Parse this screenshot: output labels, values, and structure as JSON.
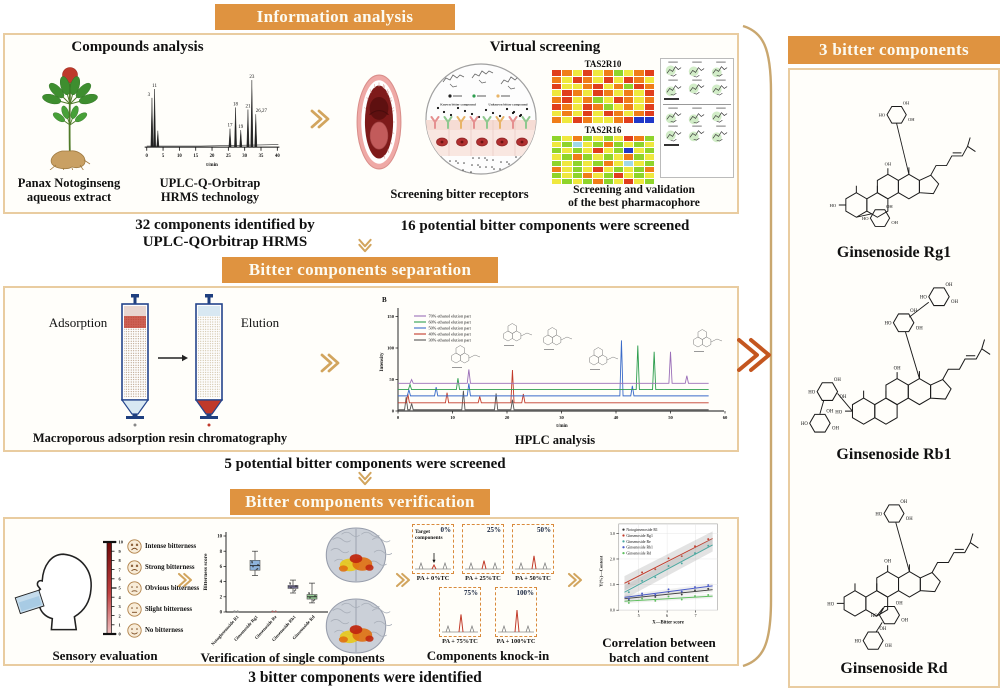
{
  "palette": {
    "header_bg": "#DF9340",
    "header_text": "#FCFBF2",
    "panel_border": "#E9CCA0",
    "panel_bg": "#FFFEFA",
    "chevron_tan": "#D2A55E",
    "chevron_red": "#C4561F",
    "bracket": "#C9A76F",
    "text": "#111111"
  },
  "headers": {
    "information_analysis": "Information analysis",
    "bitter_separation": "Bitter components separation",
    "bitter_verification": "Bitter components verification",
    "three_components": "3 bitter components"
  },
  "top": {
    "compounds_title": "Compounds analysis",
    "virtual_title": "Virtual screening",
    "plant_caption": [
      "Panax Notoginseng",
      "aqueous extract"
    ],
    "uplc_caption": [
      "UPLC-Q-Orbitrap",
      "HRMS technology"
    ],
    "receptor_caption": "Screening bitter receptors",
    "receptor_circle": {
      "known_label": "Known bitter compound",
      "unknown_label": "Unknown bitter compound"
    },
    "pharma_caption": [
      "Screening and validation",
      "of the best pharmacophore"
    ],
    "result_left": [
      "32 components identified by",
      "UPLC-QOrbitrap HRMS"
    ],
    "result_right": "16 potential bitter components were screened"
  },
  "middle": {
    "adsorption_label": "Adsorption",
    "elution_label": "Elution",
    "resin_caption": "Macroporous adsorption resin chromatography",
    "hplc_caption": "HPLC analysis",
    "result": "5 potential bitter components were screened"
  },
  "bottom": {
    "scale_ticks": [
      "10",
      "9",
      "8",
      "7",
      "6",
      "5",
      "4",
      "3",
      "2",
      "1",
      "0"
    ],
    "scale_labels": [
      "Intense bitterness",
      "Strong bitterness",
      "Obvious bitterness",
      "Slight bitterness",
      "No bitterness"
    ],
    "sensory_caption": "Sensory evaluation",
    "verification_caption": "Verification of single components",
    "knockin_caption": "Components knock-in",
    "target_label": [
      "Target",
      "components"
    ],
    "correlation_caption": [
      "Correlation between",
      "batch and content"
    ],
    "result": "3 bitter components were identified"
  },
  "right": {
    "compound_names": [
      "Ginsenoside Rg1",
      "Ginsenoside Rb1",
      "Ginsenoside Rd"
    ],
    "oh_label": "OH",
    "ho_label": "HO"
  },
  "chart_data": [
    {
      "id": "uplc_chromatogram",
      "type": "line",
      "xlabel": "t/min",
      "xticks": [
        0,
        5,
        10,
        15,
        20,
        25,
        30,
        35,
        40
      ],
      "xlim": [
        0,
        40
      ],
      "peaks": [
        {
          "t": 1.6,
          "h": 72,
          "label": "3",
          "dx": -5
        },
        {
          "t": 2.4,
          "h": 85,
          "label": "11",
          "dx": 0
        },
        {
          "t": 3.4,
          "h": 24,
          "label": "",
          "dx": 0
        },
        {
          "t": 25.5,
          "h": 27,
          "label": "17",
          "dx": 0
        },
        {
          "t": 27.2,
          "h": 58,
          "label": "18",
          "dx": 0
        },
        {
          "t": 28.8,
          "h": 25,
          "label": "19",
          "dx": 0
        },
        {
          "t": 31.0,
          "h": 55,
          "label": "21",
          "dx": 0
        },
        {
          "t": 32.2,
          "h": 98,
          "label": "23",
          "dx": 0
        },
        {
          "t": 33.4,
          "h": 48,
          "label": "26,27",
          "dx": 9
        }
      ]
    },
    {
      "id": "tas2r_heatmaps",
      "type": "heatmap",
      "palette": {
        "r": "#E03E1C",
        "o": "#F07D18",
        "y": "#EFE83E",
        "g": "#8FD42A",
        "G": "#3FAE3F",
        "b": "#2038C8",
        "c": "#9FD8E8"
      },
      "maps": [
        {
          "title": "TAS2R10",
          "rows": [
            "royryogyor",
            "oyroyryroy",
            "ryyoryogro",
            "yroyroyoyr",
            "oryogyroyo",
            "royrogyoyr",
            "yoyryroyor",
            "oyroyyorbb"
          ]
        },
        {
          "title": "TAS2R16",
          "rows": [
            "gyogygyrog",
            "ygcygogygy",
            "gygyrygbyg",
            "ygogygyogy",
            "gygygoycyg",
            "oygyrygygo",
            "gygoygrygy",
            "ygygogyryg"
          ]
        }
      ]
    },
    {
      "id": "hplc",
      "type": "line",
      "panel_label": "B",
      "ylabel": "Intensity",
      "xlabel": "t/min",
      "yticks": [
        0,
        50,
        100,
        150
      ],
      "xticks": [
        0,
        10,
        20,
        30,
        40,
        50,
        60
      ],
      "legend": [
        "70% ethanol elution part",
        "60% ethanol elution part",
        "50% ethanol elution part",
        "40% ethanol elution part",
        "30% ethanol elution part"
      ],
      "series": [
        {
          "name": "30% ethanol elution part",
          "color": "#555555",
          "offset": 2,
          "peaks": [
            [
              1.5,
              20
            ],
            [
              2.5,
              10
            ],
            [
              12,
              30
            ],
            [
              18,
              26
            ],
            [
              21,
              16
            ]
          ]
        },
        {
          "name": "40% ethanol elution part",
          "color": "#C23B2A",
          "offset": 13,
          "peaks": [
            [
              1.8,
              14
            ],
            [
              9,
              16
            ],
            [
              15,
              10
            ],
            [
              21,
              52
            ],
            [
              23,
              14
            ]
          ]
        },
        {
          "name": "50% ethanol elution part",
          "color": "#3A6BC9",
          "offset": 24,
          "peaks": [
            [
              2,
              10
            ],
            [
              7,
              14
            ],
            [
              13,
              20
            ],
            [
              41,
              88
            ],
            [
              43,
              16
            ]
          ]
        },
        {
          "name": "60% ethanol elution part",
          "color": "#2E9E4F",
          "offset": 34,
          "peaks": [
            [
              2.2,
              8
            ],
            [
              11,
              18
            ],
            [
              44,
              70
            ],
            [
              47,
              60
            ]
          ]
        },
        {
          "name": "70% ethanol elution part",
          "color": "#9B6FB8",
          "offset": 44,
          "peaks": [
            [
              2.5,
              6
            ],
            [
              13,
              22
            ],
            [
              50,
              50
            ],
            [
              53,
              12
            ]
          ]
        }
      ]
    },
    {
      "id": "bitterness_boxplot",
      "type": "box",
      "ylabel": "Bitterness score",
      "yticks": [
        0,
        2,
        4,
        6,
        8,
        10
      ],
      "ylim": [
        0,
        10
      ],
      "categories": [
        "Notoginsenoside R1",
        "Ginsenoside Rg1",
        "Ginsenoside Re",
        "Ginsenoside Rb1",
        "Ginsenoside Rd"
      ],
      "boxes": [
        {
          "lo": 0,
          "q1": 0,
          "med": 0.05,
          "q3": 0.12,
          "hi": 0.25,
          "color": "#9A9A9A"
        },
        {
          "lo": 4.8,
          "q1": 5.5,
          "med": 6.1,
          "q3": 6.8,
          "hi": 8.0,
          "color": "#7BA7D7"
        },
        {
          "lo": 0,
          "q1": 0,
          "med": 0.05,
          "q3": 0.12,
          "hi": 0.25,
          "color": "#C06060"
        },
        {
          "lo": 2.5,
          "q1": 3.1,
          "med": 3.3,
          "q3": 3.5,
          "hi": 4.2,
          "color": "#8F86C9"
        },
        {
          "lo": 1.2,
          "q1": 1.7,
          "med": 2.0,
          "q3": 2.3,
          "hi": 3.8,
          "color": "#86C786"
        }
      ]
    },
    {
      "id": "knockin",
      "type": "chromatogram_series",
      "panels": [
        {
          "pct": "0%",
          "caption": "PA + 0%TC",
          "peak": 0.18
        },
        {
          "pct": "25%",
          "caption": "PA + 25%TC",
          "peak": 0.38
        },
        {
          "pct": "50%",
          "caption": "PA + 50%TC",
          "peak": 0.6
        },
        {
          "pct": "75%",
          "caption": "PA + 75%TC",
          "peak": 0.8
        },
        {
          "pct": "100%",
          "caption": "PA + 100%TC",
          "peak": 1.0
        }
      ]
    },
    {
      "id": "correlation",
      "type": "scatter_line",
      "xlabel": "X—Bitter score",
      "ylabel": "Y(%)—Content",
      "yticks": [
        "0.0",
        "1.0",
        "2.0",
        "3.0"
      ],
      "xticks": [
        5,
        6,
        7
      ],
      "xlim": [
        4.3,
        7.8
      ],
      "ylim": [
        0,
        3.4
      ],
      "series": [
        {
          "name": "Notoginsenoside R1",
          "color": "#3A3A3A",
          "y_start": 0.45,
          "y_end": 0.8,
          "band": 0.1
        },
        {
          "name": "Ginsenoside Rg1",
          "color": "#C23B2A",
          "y_start": 1.05,
          "y_end": 2.8,
          "band": 0.28
        },
        {
          "name": "Ginsenoside Re",
          "color": "#4AA8A0",
          "y_start": 0.7,
          "y_end": 2.55,
          "band": 0.26
        },
        {
          "name": "Ginsenoside Rb1",
          "color": "#4A5BC9",
          "y_start": 0.5,
          "y_end": 0.95,
          "band": 0.1
        },
        {
          "name": "Ginsenoside Rd",
          "color": "#5FBF5F",
          "y_start": 0.35,
          "y_end": 0.55,
          "band": 0.08
        }
      ]
    }
  ]
}
